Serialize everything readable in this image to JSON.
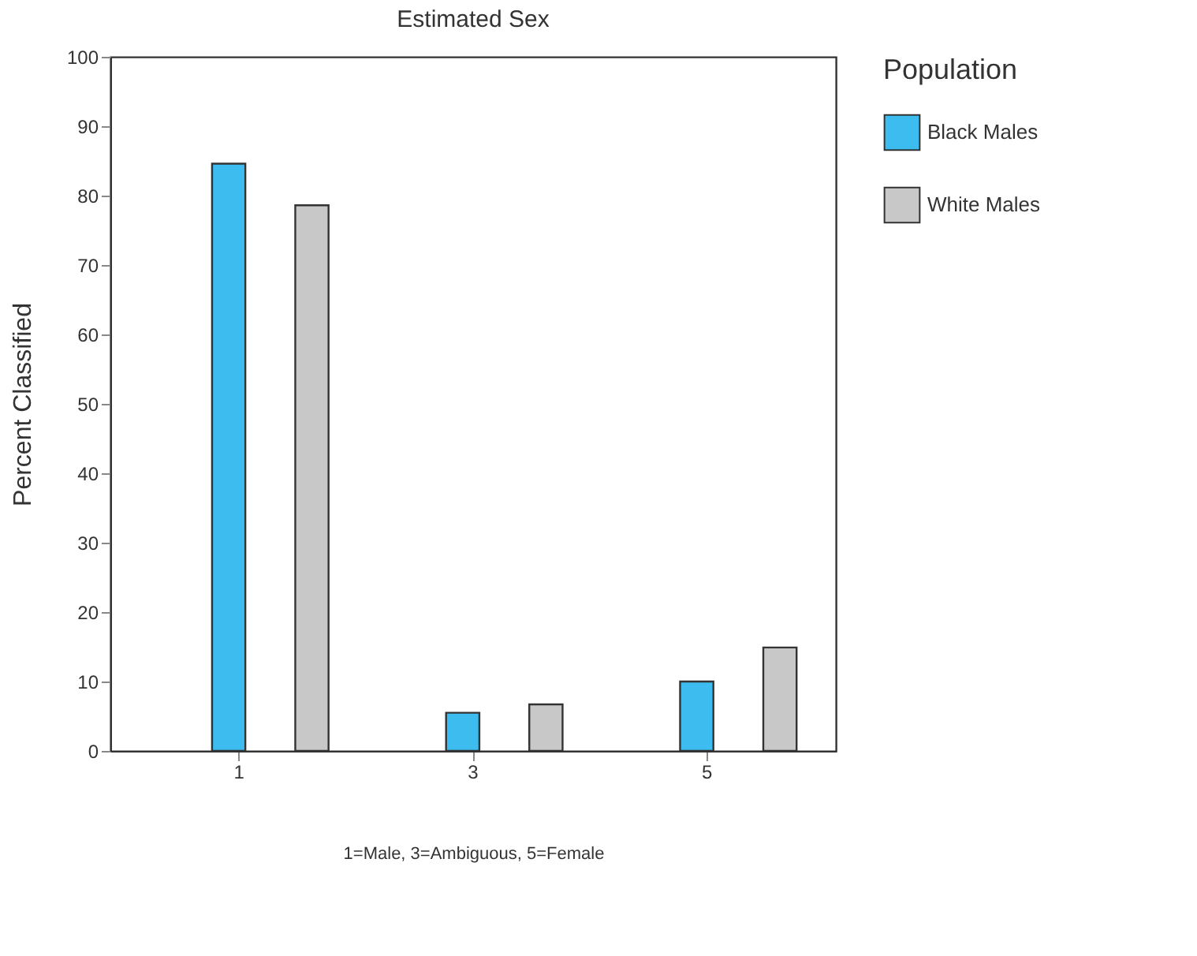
{
  "chart_data": {
    "type": "bar",
    "title": "Estimated Sex",
    "xlabel": "1=Male, 3=Ambiguous, 5=Female",
    "ylabel": "Percent Classified",
    "legend_title": "Population",
    "categories": [
      "1",
      "3",
      "5"
    ],
    "series": [
      {
        "name": "Black Males",
        "color": "#3dbcf0",
        "values": [
          84.6,
          5.5,
          10.0
        ]
      },
      {
        "name": "White Males",
        "color": "#c8c8c8",
        "values": [
          78.6,
          6.7,
          14.9
        ]
      }
    ],
    "ylim": [
      0,
      100
    ],
    "yticks": [
      0,
      10,
      20,
      30,
      40,
      50,
      60,
      70,
      80,
      90,
      100
    ],
    "grid": false,
    "legend": "right"
  }
}
